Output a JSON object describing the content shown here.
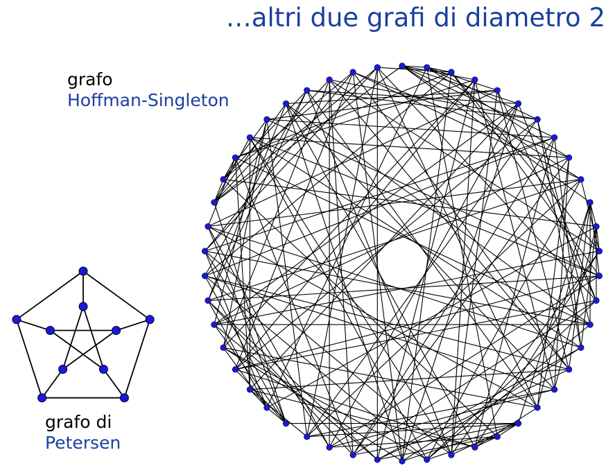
{
  "title": "…altri due grafi di diametro 2",
  "hoffman_singleton": {
    "label_line1": "grafo",
    "label_line2": "Hoffman-Singleton",
    "vertex_count": 50,
    "degree": 7
  },
  "petersen": {
    "label_line1": "grafo di",
    "label_line2": "Petersen",
    "vertex_count": 10,
    "edges": [
      [
        0,
        1
      ],
      [
        1,
        2
      ],
      [
        2,
        3
      ],
      [
        3,
        4
      ],
      [
        4,
        0
      ],
      [
        0,
        5
      ],
      [
        1,
        6
      ],
      [
        2,
        7
      ],
      [
        3,
        8
      ],
      [
        4,
        9
      ],
      [
        5,
        7
      ],
      [
        7,
        9
      ],
      [
        9,
        6
      ],
      [
        6,
        8
      ],
      [
        8,
        5
      ]
    ]
  },
  "colors": {
    "title": "#1a3fa0",
    "vertex": "#1a1ad6",
    "edge": "#000000"
  }
}
